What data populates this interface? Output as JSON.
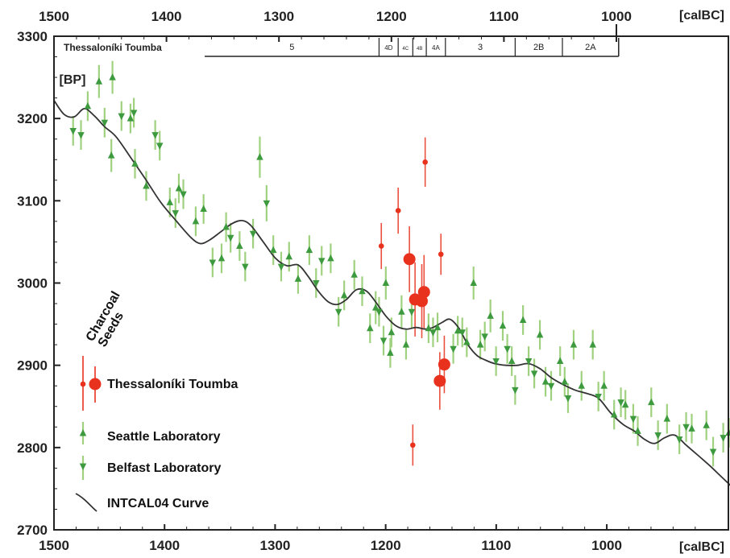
{
  "chart_data": {
    "type": "scatter",
    "x_unit": "[calBC]",
    "y_unit": "[BP]",
    "xlim": [
      1500,
      1000
    ],
    "xlim_bottom": [
      1500,
      890
    ],
    "ylim": [
      2700,
      3300
    ],
    "x_ticks_top": [
      "1500",
      "1400",
      "1300",
      "1200",
      "1100",
      "1000"
    ],
    "x_ticks_bottom": [
      "1500",
      "1400",
      "1300",
      "1200",
      "1100",
      "1000"
    ],
    "y_ticks": [
      "3300",
      "3200",
      "3100",
      "3000",
      "2900",
      "2800",
      "2700"
    ],
    "grid": false,
    "site_label": "Thessaloníki Toumba",
    "phases": [
      {
        "label": "5",
        "start": 1366,
        "end": 1211
      },
      {
        "label": "4D",
        "start": 1211,
        "end": 1194
      },
      {
        "label": "4C",
        "start": 1194,
        "end": 1181
      },
      {
        "label": "4B",
        "start": 1181,
        "end": 1169
      },
      {
        "label": "4A",
        "start": 1169,
        "end": 1152
      },
      {
        "label": "3",
        "start": 1152,
        "end": 1090
      },
      {
        "label": "2B",
        "start": 1090,
        "end": 1048
      },
      {
        "label": "2A",
        "start": 1048,
        "end": 998
      }
    ],
    "legend": {
      "sample_labels": [
        "Charcoal",
        "Seeds"
      ],
      "placement": "bottom-left",
      "entries": [
        "Thessaloníki Toumba",
        "Seattle Laboratory",
        "Belfast Laboratory",
        "INTCAL04 Curve"
      ]
    },
    "colors": {
      "toumba": "#e8321e",
      "seattle": "#3e9a3e",
      "belfast": "#3e9a3e",
      "errorbar_green": "#9fd17f",
      "curve": "#333333"
    },
    "series": [
      {
        "name": "Thessaloníki Toumba",
        "points": [
          {
            "x": 1170,
            "y": 3147,
            "err": 30,
            "kind": "Charcoal"
          },
          {
            "x": 1194,
            "y": 3088,
            "err": 28,
            "kind": "Charcoal"
          },
          {
            "x": 1209,
            "y": 3045,
            "err": 28,
            "kind": "Charcoal"
          },
          {
            "x": 1156,
            "y": 3035,
            "err": 25,
            "kind": "Charcoal"
          },
          {
            "x": 1184,
            "y": 3029,
            "err": 40,
            "kind": "Seeds"
          },
          {
            "x": 1171,
            "y": 2989,
            "err": 45,
            "kind": "Seeds"
          },
          {
            "x": 1179,
            "y": 2980,
            "err": 45,
            "kind": "Seeds"
          },
          {
            "x": 1173,
            "y": 2978,
            "err": 45,
            "kind": "Seeds"
          },
          {
            "x": 1153,
            "y": 2901,
            "err": 35,
            "kind": "Seeds"
          },
          {
            "x": 1157,
            "y": 2881,
            "err": 35,
            "kind": "Seeds"
          },
          {
            "x": 1181,
            "y": 2803,
            "err": 25,
            "kind": "Charcoal"
          }
        ]
      },
      {
        "name": "Seattle Laboratory",
        "points": [
          {
            "x": 1460,
            "y": 3245,
            "err": 20
          },
          {
            "x": 1448,
            "y": 3250,
            "err": 20
          },
          {
            "x": 1470,
            "y": 3215,
            "err": 18
          },
          {
            "x": 1432,
            "y": 3200,
            "err": 18
          },
          {
            "x": 1449,
            "y": 3155,
            "err": 20
          },
          {
            "x": 1428,
            "y": 3145,
            "err": 18
          },
          {
            "x": 1418,
            "y": 3118,
            "err": 18
          },
          {
            "x": 1389,
            "y": 3115,
            "err": 18
          },
          {
            "x": 1397,
            "y": 3098,
            "err": 18
          },
          {
            "x": 1367,
            "y": 3090,
            "err": 18
          },
          {
            "x": 1374,
            "y": 3075,
            "err": 18
          },
          {
            "x": 1347,
            "y": 3068,
            "err": 18
          },
          {
            "x": 1317,
            "y": 3153,
            "err": 25
          },
          {
            "x": 1335,
            "y": 3045,
            "err": 18
          },
          {
            "x": 1351,
            "y": 3030,
            "err": 18
          },
          {
            "x": 1305,
            "y": 3040,
            "err": 18
          },
          {
            "x": 1291,
            "y": 3032,
            "err": 18
          },
          {
            "x": 1273,
            "y": 3040,
            "err": 18
          },
          {
            "x": 1283,
            "y": 3005,
            "err": 18
          },
          {
            "x": 1254,
            "y": 3030,
            "err": 18
          },
          {
            "x": 1233,
            "y": 3010,
            "err": 18
          },
          {
            "x": 1242,
            "y": 2985,
            "err": 18
          },
          {
            "x": 1226,
            "y": 2990,
            "err": 18
          },
          {
            "x": 1214,
            "y": 2970,
            "err": 20
          },
          {
            "x": 1205,
            "y": 3000,
            "err": 20
          },
          {
            "x": 1219,
            "y": 2945,
            "err": 18
          },
          {
            "x": 1200,
            "y": 2940,
            "err": 18
          },
          {
            "x": 1187,
            "y": 2925,
            "err": 18
          },
          {
            "x": 1201,
            "y": 2915,
            "err": 18
          },
          {
            "x": 1191,
            "y": 2965,
            "err": 20
          },
          {
            "x": 1167,
            "y": 2945,
            "err": 18
          },
          {
            "x": 1159,
            "y": 2946,
            "err": 18
          },
          {
            "x": 1141,
            "y": 2942,
            "err": 18
          },
          {
            "x": 1127,
            "y": 3000,
            "err": 20
          },
          {
            "x": 1133,
            "y": 2928,
            "err": 18
          },
          {
            "x": 1121,
            "y": 2925,
            "err": 18
          },
          {
            "x": 1112,
            "y": 2960,
            "err": 20
          },
          {
            "x": 1101,
            "y": 2948,
            "err": 18
          },
          {
            "x": 1093,
            "y": 2905,
            "err": 18
          },
          {
            "x": 1083,
            "y": 2955,
            "err": 18
          },
          {
            "x": 1068,
            "y": 2937,
            "err": 18
          },
          {
            "x": 1063,
            "y": 2880,
            "err": 18
          },
          {
            "x": 1050,
            "y": 2905,
            "err": 18
          },
          {
            "x": 1046,
            "y": 2880,
            "err": 18
          },
          {
            "x": 1038,
            "y": 2925,
            "err": 18
          },
          {
            "x": 1021,
            "y": 2925,
            "err": 18
          },
          {
            "x": 1031,
            "y": 2875,
            "err": 18
          },
          {
            "x": 1011,
            "y": 2875,
            "err": 18
          },
          {
            "x": 1002,
            "y": 2840,
            "err": 18
          },
          {
            "x": 992,
            "y": 2852,
            "err": 18
          },
          {
            "x": 981,
            "y": 2820,
            "err": 18
          },
          {
            "x": 969,
            "y": 2855,
            "err": 18
          },
          {
            "x": 955,
            "y": 2835,
            "err": 18
          },
          {
            "x": 933,
            "y": 2823,
            "err": 18
          },
          {
            "x": 920,
            "y": 2827,
            "err": 18
          },
          {
            "x": 900,
            "y": 2818,
            "err": 18
          }
        ]
      },
      {
        "name": "Belfast Laboratory",
        "points": [
          {
            "x": 1483,
            "y": 3185,
            "err": 18
          },
          {
            "x": 1476,
            "y": 3180,
            "err": 18
          },
          {
            "x": 1455,
            "y": 3195,
            "err": 18
          },
          {
            "x": 1440,
            "y": 3203,
            "err": 18
          },
          {
            "x": 1429,
            "y": 3207,
            "err": 18
          },
          {
            "x": 1410,
            "y": 3180,
            "err": 18
          },
          {
            "x": 1406,
            "y": 3167,
            "err": 18
          },
          {
            "x": 1392,
            "y": 3085,
            "err": 18
          },
          {
            "x": 1385,
            "y": 3108,
            "err": 18
          },
          {
            "x": 1359,
            "y": 3025,
            "err": 18
          },
          {
            "x": 1343,
            "y": 3055,
            "err": 18
          },
          {
            "x": 1330,
            "y": 3020,
            "err": 18
          },
          {
            "x": 1323,
            "y": 3060,
            "err": 18
          },
          {
            "x": 1311,
            "y": 3097,
            "err": 22
          },
          {
            "x": 1298,
            "y": 3020,
            "err": 18
          },
          {
            "x": 1262,
            "y": 3027,
            "err": 18
          },
          {
            "x": 1267,
            "y": 3000,
            "err": 18
          },
          {
            "x": 1247,
            "y": 2965,
            "err": 18
          },
          {
            "x": 1211,
            "y": 2965,
            "err": 18
          },
          {
            "x": 1207,
            "y": 2930,
            "err": 18
          },
          {
            "x": 1182,
            "y": 2965,
            "err": 20
          },
          {
            "x": 1163,
            "y": 2940,
            "err": 18
          },
          {
            "x": 1137,
            "y": 2940,
            "err": 18
          },
          {
            "x": 1145,
            "y": 2920,
            "err": 18
          },
          {
            "x": 1117,
            "y": 2935,
            "err": 18
          },
          {
            "x": 1107,
            "y": 2905,
            "err": 18
          },
          {
            "x": 1097,
            "y": 2920,
            "err": 18
          },
          {
            "x": 1090,
            "y": 2870,
            "err": 18
          },
          {
            "x": 1078,
            "y": 2905,
            "err": 18
          },
          {
            "x": 1073,
            "y": 2890,
            "err": 18
          },
          {
            "x": 1058,
            "y": 2875,
            "err": 18
          },
          {
            "x": 1043,
            "y": 2860,
            "err": 18
          },
          {
            "x": 1016,
            "y": 2862,
            "err": 18
          },
          {
            "x": 996,
            "y": 2855,
            "err": 18
          },
          {
            "x": 985,
            "y": 2835,
            "err": 18
          },
          {
            "x": 963,
            "y": 2815,
            "err": 18
          },
          {
            "x": 944,
            "y": 2810,
            "err": 18
          },
          {
            "x": 938,
            "y": 2825,
            "err": 18
          },
          {
            "x": 914,
            "y": 2795,
            "err": 18
          },
          {
            "x": 905,
            "y": 2812,
            "err": 18
          },
          {
            "x": 896,
            "y": 2782,
            "err": 18
          }
        ]
      },
      {
        "name": "INTCAL04 Curve",
        "points": [
          {
            "x": 1500,
            "y": 3222
          },
          {
            "x": 1491,
            "y": 3205
          },
          {
            "x": 1482,
            "y": 3202
          },
          {
            "x": 1473,
            "y": 3212
          },
          {
            "x": 1464,
            "y": 3203
          },
          {
            "x": 1455,
            "y": 3190
          },
          {
            "x": 1445,
            "y": 3178
          },
          {
            "x": 1432,
            "y": 3153
          },
          {
            "x": 1419,
            "y": 3127
          },
          {
            "x": 1405,
            "y": 3098
          },
          {
            "x": 1391,
            "y": 3075
          },
          {
            "x": 1378,
            "y": 3055
          },
          {
            "x": 1370,
            "y": 3048
          },
          {
            "x": 1362,
            "y": 3052
          },
          {
            "x": 1352,
            "y": 3062
          },
          {
            "x": 1342,
            "y": 3072
          },
          {
            "x": 1333,
            "y": 3076
          },
          {
            "x": 1325,
            "y": 3070
          },
          {
            "x": 1314,
            "y": 3050
          },
          {
            "x": 1303,
            "y": 3030
          },
          {
            "x": 1293,
            "y": 3021
          },
          {
            "x": 1283,
            "y": 3022
          },
          {
            "x": 1274,
            "y": 3008
          },
          {
            "x": 1265,
            "y": 2990
          },
          {
            "x": 1256,
            "y": 2977
          },
          {
            "x": 1248,
            "y": 2974
          },
          {
            "x": 1240,
            "y": 2980
          },
          {
            "x": 1231,
            "y": 2992
          },
          {
            "x": 1222,
            "y": 2990
          },
          {
            "x": 1213,
            "y": 2975
          },
          {
            "x": 1205,
            "y": 2960
          },
          {
            "x": 1196,
            "y": 2948
          },
          {
            "x": 1187,
            "y": 2944
          },
          {
            "x": 1178,
            "y": 2946
          },
          {
            "x": 1170,
            "y": 2944
          },
          {
            "x": 1163,
            "y": 2946
          },
          {
            "x": 1155,
            "y": 2952
          },
          {
            "x": 1148,
            "y": 2956
          },
          {
            "x": 1140,
            "y": 2945
          },
          {
            "x": 1132,
            "y": 2925
          },
          {
            "x": 1124,
            "y": 2912
          },
          {
            "x": 1116,
            "y": 2906
          },
          {
            "x": 1108,
            "y": 2902
          },
          {
            "x": 1098,
            "y": 2900
          },
          {
            "x": 1088,
            "y": 2900
          },
          {
            "x": 1078,
            "y": 2902
          },
          {
            "x": 1068,
            "y": 2896
          },
          {
            "x": 1058,
            "y": 2885
          },
          {
            "x": 1048,
            "y": 2877
          },
          {
            "x": 1037,
            "y": 2870
          },
          {
            "x": 1027,
            "y": 2866
          },
          {
            "x": 1016,
            "y": 2860
          },
          {
            "x": 1005,
            "y": 2842
          },
          {
            "x": 994,
            "y": 2828
          },
          {
            "x": 984,
            "y": 2820
          },
          {
            "x": 975,
            "y": 2810
          },
          {
            "x": 966,
            "y": 2805
          },
          {
            "x": 957,
            "y": 2812
          },
          {
            "x": 948,
            "y": 2815
          },
          {
            "x": 938,
            "y": 2803
          },
          {
            "x": 927,
            "y": 2790
          },
          {
            "x": 917,
            "y": 2778
          },
          {
            "x": 907,
            "y": 2765
          },
          {
            "x": 897,
            "y": 2752
          },
          {
            "x": 891,
            "y": 2745
          }
        ]
      }
    ]
  }
}
